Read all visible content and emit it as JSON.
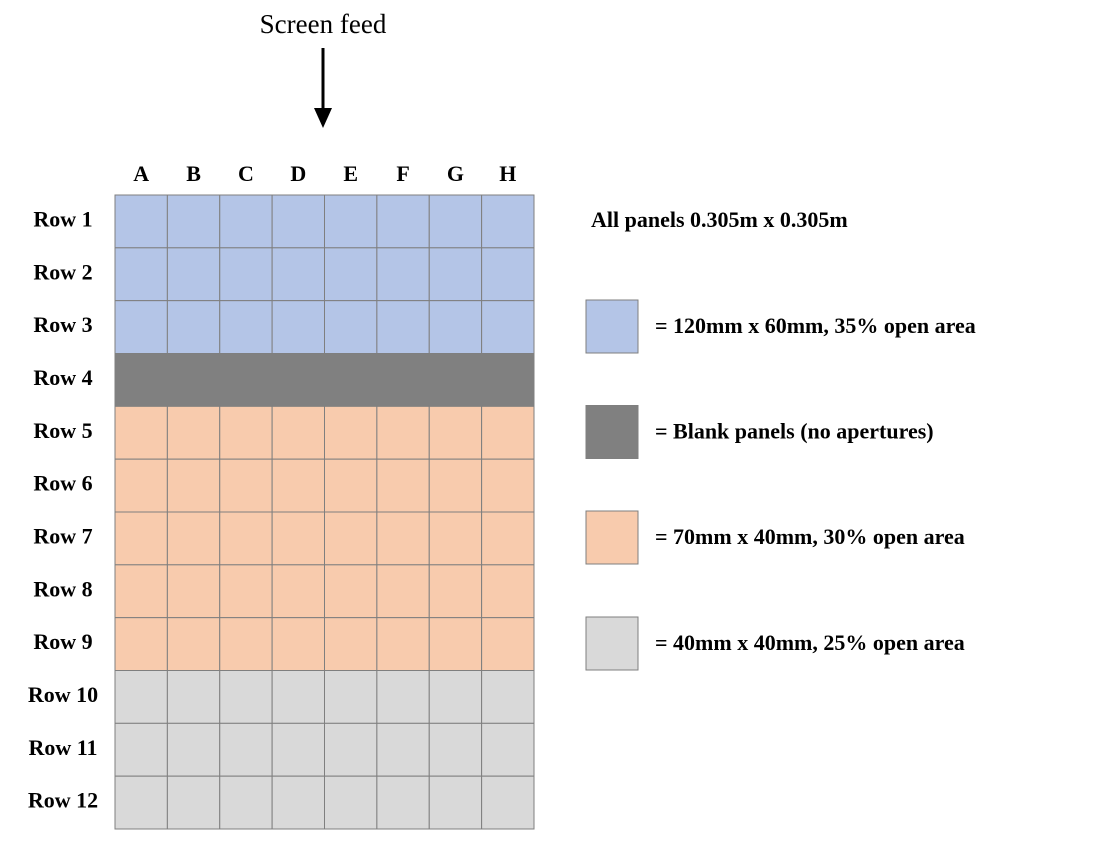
{
  "feed_label": "Screen feed",
  "columns": [
    "A",
    "B",
    "C",
    "D",
    "E",
    "F",
    "G",
    "H"
  ],
  "rows": [
    {
      "label": "Row 1",
      "color": "#b4c5e7"
    },
    {
      "label": "Row 2",
      "color": "#b4c5e7"
    },
    {
      "label": "Row 3",
      "color": "#b4c5e7"
    },
    {
      "label": "Row 4",
      "color": "#808080",
      "merged": true
    },
    {
      "label": "Row 5",
      "color": "#f8cbad"
    },
    {
      "label": "Row 6",
      "color": "#f8cbad"
    },
    {
      "label": "Row 7",
      "color": "#f8cbad"
    },
    {
      "label": "Row 8",
      "color": "#f8cbad"
    },
    {
      "label": "Row 9",
      "color": "#f8cbad"
    },
    {
      "label": "Row 10",
      "color": "#d9d9d9"
    },
    {
      "label": "Row 11",
      "color": "#d9d9d9"
    },
    {
      "label": "Row 12",
      "color": "#d9d9d9"
    }
  ],
  "note": "All panels 0.305m x 0.305m",
  "legend": [
    {
      "color": "#b4c5e7",
      "label": "= 120mm x 60mm, 35% open area"
    },
    {
      "color": "#808080",
      "label": "= Blank panels (no apertures)"
    },
    {
      "color": "#f8cbad",
      "label": "= 70mm x 40mm, 30% open area"
    },
    {
      "color": "#d9d9d9",
      "label": "= 40mm x 40mm, 25% open area"
    }
  ]
}
